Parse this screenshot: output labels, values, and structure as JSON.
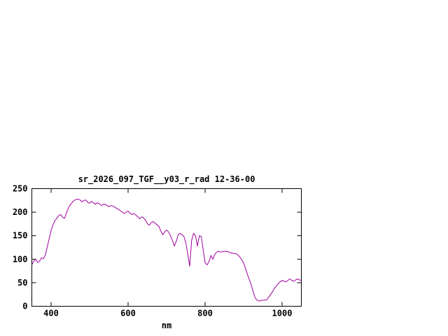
{
  "page": {
    "background": "#ffffff"
  },
  "chart_data": {
    "type": "line",
    "title": "sr_2026_097_TGF__y03_r_rad 12-36-00",
    "xlabel": "nm",
    "ylabel": "",
    "xlim": [
      350,
      1050
    ],
    "ylim": [
      0,
      250
    ],
    "xticks": [
      400,
      600,
      800,
      1000
    ],
    "yticks": [
      0,
      50,
      100,
      150,
      200,
      250
    ],
    "grid": false,
    "legend": "none",
    "line_color": "#a000a0",
    "frame_color": "#000000",
    "series": [
      {
        "name": "sr_2026_097_TGF__y03_r_rad",
        "x": [
          350,
          355,
          360,
          365,
          370,
          375,
          380,
          385,
          390,
          395,
          400,
          405,
          410,
          415,
          420,
          425,
          430,
          435,
          440,
          445,
          450,
          455,
          460,
          465,
          470,
          475,
          480,
          485,
          490,
          495,
          500,
          505,
          510,
          515,
          520,
          525,
          530,
          535,
          540,
          545,
          550,
          555,
          560,
          565,
          570,
          575,
          580,
          585,
          590,
          595,
          600,
          605,
          610,
          615,
          620,
          625,
          630,
          635,
          640,
          645,
          650,
          655,
          660,
          665,
          670,
          675,
          680,
          685,
          690,
          695,
          700,
          705,
          710,
          715,
          720,
          725,
          730,
          735,
          740,
          745,
          750,
          755,
          760,
          765,
          770,
          775,
          780,
          785,
          790,
          795,
          800,
          805,
          810,
          815,
          820,
          825,
          830,
          835,
          840,
          845,
          850,
          855,
          860,
          865,
          870,
          875,
          880,
          885,
          890,
          895,
          900,
          905,
          910,
          915,
          920,
          925,
          930,
          935,
          940,
          945,
          950,
          955,
          960,
          965,
          970,
          975,
          980,
          985,
          990,
          995,
          1000,
          1005,
          1010,
          1015,
          1020,
          1025,
          1030,
          1035,
          1040,
          1045,
          1050
        ],
        "y": [
          88,
          96,
          100,
          93,
          96,
          103,
          101,
          109,
          126,
          144,
          161,
          174,
          182,
          187,
          193,
          195,
          189,
          187,
          199,
          209,
          216,
          221,
          225,
          227,
          228,
          226,
          222,
          225,
          226,
          221,
          219,
          223,
          220,
          217,
          220,
          218,
          214,
          216,
          217,
          214,
          212,
          214,
          213,
          211,
          208,
          206,
          203,
          200,
          197,
          200,
          202,
          198,
          195,
          197,
          194,
          190,
          186,
          190,
          188,
          183,
          176,
          172,
          178,
          180,
          177,
          173,
          170,
          160,
          152,
          158,
          162,
          158,
          150,
          140,
          128,
          138,
          152,
          155,
          152,
          148,
          135,
          110,
          85,
          140,
          155,
          150,
          128,
          150,
          148,
          120,
          92,
          88,
          95,
          108,
          100,
          110,
          115,
          117,
          115,
          116,
          117,
          116,
          116,
          114,
          113,
          112,
          112,
          109,
          105,
          99,
          92,
          80,
          68,
          56,
          45,
          30,
          18,
          13,
          11,
          12,
          13,
          13,
          14,
          19,
          25,
          31,
          38,
          43,
          48,
          52,
          55,
          53,
          52,
          55,
          58,
          55,
          53,
          56,
          58,
          56,
          55
        ]
      }
    ]
  }
}
